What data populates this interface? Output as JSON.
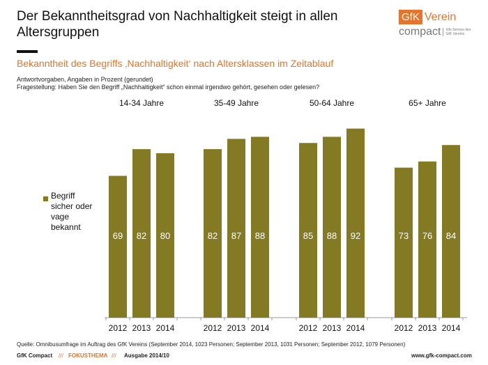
{
  "title": "Der Bekanntheitsgrad von Nachhaltigkeit steigt in allen Altersgruppen",
  "logo": {
    "brand": "GfK",
    "name": "Verein",
    "sub": "compact",
    "tagline": "Info Service des GfK Vereins"
  },
  "subtitle": "Bekanntheit des Begriffs ‚Nachhaltigkeit‘ nach Altersklassen im Zeitablauf",
  "note1": "Antwortvorgaben,  Angaben in Prozent (gerundet)",
  "note2": "Fragestellung:  Haben Sie den Begriff „Nachhaltigkeit“ schon einmal irgendwo gehört, gesehen oder gelesen?",
  "chart_data": {
    "type": "bar",
    "groups": [
      "14-34 Jahre",
      "35-49 Jahre",
      "50-64 Jahre",
      "65+ Jahre"
    ],
    "categories": [
      "2012",
      "2013",
      "2014"
    ],
    "series": [
      {
        "name": "Begriff sicher oder vage bekannt",
        "values": [
          [
            69,
            82,
            80
          ],
          [
            82,
            87,
            88
          ],
          [
            85,
            88,
            92
          ],
          [
            73,
            76,
            84
          ]
        ]
      }
    ],
    "color": "#857a24",
    "ylim": [
      0,
      100
    ],
    "legend": "left"
  },
  "source": "Quelle: Omnibusumfrage im Auftrag des GfK Vereins (September 2014, 1023 Personen; September 2013, 1031 Personen; September 2012, 1079 Personen)",
  "footer": {
    "brand": "GfK Compact",
    "sep": "///",
    "section": "FOKUSTHEMA",
    "issue": "Ausgabe 2014/10",
    "url": "www.gfk-compact.com"
  }
}
